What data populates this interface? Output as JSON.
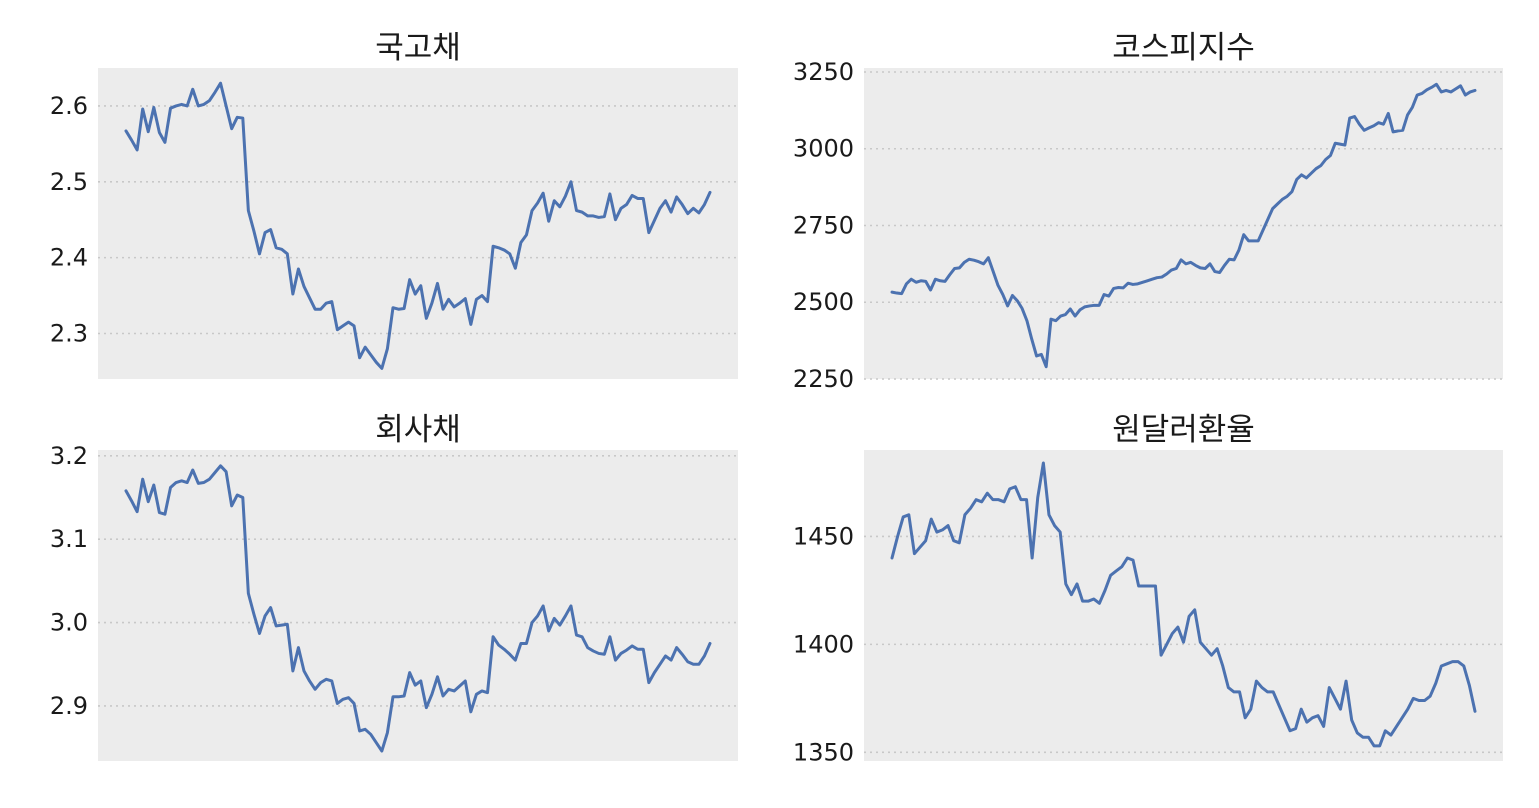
{
  "colors": {
    "line": "#4c72b0",
    "plot_background": "#ececec",
    "grid": "#c8c8c8"
  },
  "chart_data": [
    {
      "type": "line",
      "title": "국고채",
      "xlabel": "",
      "ylabel": "",
      "ylim": [
        2.24,
        2.65
      ],
      "yticks": [
        2.3,
        2.4,
        2.5,
        2.6
      ],
      "ytick_labels": [
        "2.3",
        "2.4",
        "2.5",
        "2.6"
      ],
      "grid": "horizontal-dotted",
      "series": [
        {
          "values": [
            2.567,
            2.555,
            2.542,
            2.596,
            2.566,
            2.598,
            2.565,
            2.552,
            2.597,
            2.6,
            2.602,
            2.6,
            2.622,
            2.6,
            2.602,
            2.607,
            2.618,
            2.63,
            2.6,
            2.57,
            2.585,
            2.584,
            2.462,
            2.435,
            2.405,
            2.433,
            2.437,
            2.413,
            2.411,
            2.405,
            2.352,
            2.385,
            2.362,
            2.347,
            2.332,
            2.332,
            2.34,
            2.342,
            2.305,
            2.31,
            2.315,
            2.31,
            2.268,
            2.282,
            2.272,
            2.262,
            2.254,
            2.28,
            2.334,
            2.332,
            2.333,
            2.371,
            2.352,
            2.363,
            2.32,
            2.34,
            2.366,
            2.332,
            2.345,
            2.335,
            2.34,
            2.346,
            2.312,
            2.345,
            2.35,
            2.342,
            2.415,
            2.413,
            2.41,
            2.405,
            2.386,
            2.42,
            2.43,
            2.462,
            2.472,
            2.485,
            2.448,
            2.475,
            2.467,
            2.481,
            2.5,
            2.462,
            2.46,
            2.455,
            2.455,
            2.453,
            2.454,
            2.484,
            2.45,
            2.465,
            2.47,
            2.482,
            2.478,
            2.478,
            2.433,
            2.449,
            2.465,
            2.475,
            2.46,
            2.48,
            2.47,
            2.458,
            2.465,
            2.459,
            2.47,
            2.486
          ]
        }
      ]
    },
    {
      "type": "line",
      "title": "코스피지수",
      "xlabel": "",
      "ylabel": "",
      "ylim": [
        2250,
        3263
      ],
      "yticks": [
        2250,
        2500,
        2750,
        3000,
        3250
      ],
      "ytick_labels": [
        "2250",
        "2500",
        "2750",
        "3000",
        "3250"
      ],
      "grid": "horizontal-dotted",
      "series": [
        {
          "values": [
            2533,
            2530,
            2528,
            2560,
            2575,
            2565,
            2570,
            2568,
            2540,
            2575,
            2570,
            2568,
            2590,
            2610,
            2612,
            2630,
            2640,
            2637,
            2632,
            2625,
            2645,
            2600,
            2555,
            2525,
            2488,
            2522,
            2505,
            2480,
            2440,
            2380,
            2325,
            2330,
            2290,
            2445,
            2440,
            2455,
            2460,
            2478,
            2455,
            2475,
            2485,
            2488,
            2490,
            2490,
            2525,
            2520,
            2545,
            2548,
            2547,
            2562,
            2558,
            2560,
            2565,
            2570,
            2575,
            2580,
            2582,
            2592,
            2605,
            2610,
            2638,
            2625,
            2630,
            2620,
            2612,
            2610,
            2625,
            2600,
            2597,
            2620,
            2640,
            2638,
            2670,
            2720,
            2700,
            2700,
            2700,
            2735,
            2770,
            2805,
            2820,
            2835,
            2845,
            2860,
            2900,
            2915,
            2905,
            2920,
            2935,
            2945,
            2965,
            2978,
            3018,
            3015,
            3012,
            3100,
            3105,
            3080,
            3060,
            3068,
            3075,
            3085,
            3080,
            3115,
            3055,
            3058,
            3060,
            3110,
            3135,
            3175,
            3180,
            3192,
            3200,
            3210,
            3185,
            3190,
            3185,
            3195,
            3205,
            3175,
            3185,
            3190
          ]
        }
      ]
    },
    {
      "type": "line",
      "title": "회사채",
      "xlabel": "",
      "ylabel": "",
      "ylim": [
        2.834,
        3.207
      ],
      "yticks": [
        2.9,
        3.0,
        3.1,
        3.2
      ],
      "ytick_labels": [
        "2.9",
        "3.0",
        "3.1",
        "3.2"
      ],
      "grid": "horizontal-dotted",
      "series": [
        {
          "values": [
            3.158,
            3.146,
            3.133,
            3.172,
            3.145,
            3.165,
            3.132,
            3.13,
            3.162,
            3.168,
            3.17,
            3.168,
            3.183,
            3.167,
            3.168,
            3.172,
            3.18,
            3.188,
            3.181,
            3.14,
            3.153,
            3.15,
            3.035,
            3.01,
            2.987,
            3.008,
            3.018,
            2.996,
            2.997,
            2.998,
            2.942,
            2.97,
            2.942,
            2.93,
            2.92,
            2.928,
            2.932,
            2.93,
            2.903,
            2.908,
            2.91,
            2.903,
            2.87,
            2.872,
            2.866,
            2.856,
            2.846,
            2.868,
            2.911,
            2.911,
            2.912,
            2.94,
            2.925,
            2.93,
            2.898,
            2.914,
            2.935,
            2.912,
            2.92,
            2.918,
            2.924,
            2.93,
            2.893,
            2.914,
            2.918,
            2.916,
            2.983,
            2.973,
            2.968,
            2.962,
            2.955,
            2.975,
            2.975,
            3.0,
            3.008,
            3.02,
            2.99,
            3.005,
            2.997,
            3.008,
            3.02,
            2.985,
            2.983,
            2.97,
            2.966,
            2.963,
            2.962,
            2.983,
            2.955,
            2.963,
            2.967,
            2.972,
            2.968,
            2.968,
            2.928,
            2.94,
            2.95,
            2.96,
            2.955,
            2.97,
            2.962,
            2.953,
            2.95,
            2.95,
            2.96,
            2.975
          ]
        }
      ]
    },
    {
      "type": "line",
      "title": "원달러환율",
      "xlabel": "",
      "ylabel": "",
      "ylim": [
        1346,
        1490
      ],
      "yticks": [
        1350,
        1400,
        1450
      ],
      "ytick_labels": [
        "1350",
        "1400",
        "1450"
      ],
      "grid": "horizontal-dotted",
      "series": [
        {
          "values": [
            1440,
            1450,
            1459,
            1460,
            1442,
            1445,
            1448,
            1458,
            1452,
            1453,
            1455,
            1448,
            1447,
            1460,
            1463,
            1467,
            1466,
            1470,
            1467,
            1467,
            1466,
            1472,
            1473,
            1467,
            1467,
            1440,
            1468,
            1484,
            1460,
            1455,
            1452,
            1428,
            1423,
            1428,
            1420,
            1420,
            1421,
            1419,
            1425,
            1432,
            1434,
            1436,
            1440,
            1439,
            1427,
            1427,
            1427,
            1427,
            1395,
            1400,
            1405,
            1408,
            1401,
            1413,
            1416,
            1401,
            1398,
            1395,
            1398,
            1390,
            1380,
            1378,
            1378,
            1366,
            1370,
            1383,
            1380,
            1378,
            1378,
            1372,
            1366,
            1360,
            1361,
            1370,
            1364,
            1366,
            1367,
            1362,
            1380,
            1375,
            1370,
            1383,
            1365,
            1359,
            1357,
            1357,
            1353,
            1353,
            1360,
            1358,
            1362,
            1366,
            1370,
            1375,
            1374,
            1374,
            1376,
            1382,
            1390,
            1391,
            1392,
            1392,
            1390,
            1381,
            1369
          ]
        }
      ]
    }
  ]
}
